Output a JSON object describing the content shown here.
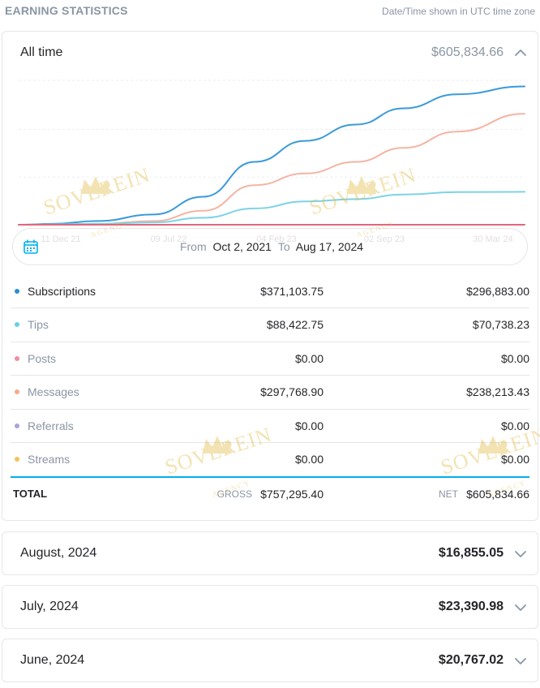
{
  "header": {
    "title": "EARNING STATISTICS",
    "timezone_note": "Date/Time shown in UTC time zone"
  },
  "summary": {
    "label": "All time",
    "amount": "$605,834.66",
    "expanded": true
  },
  "chart_data": {
    "type": "line",
    "x_ticks": [
      "11 Dec 21",
      "09 Jul 22",
      "04 Feb 23",
      "02 Sep 23",
      "30 Mar 24"
    ],
    "x": [
      "2021-10-02",
      "2021-12-11",
      "2022-03-15",
      "2022-07-09",
      "2022-10-20",
      "2023-02-04",
      "2023-05-20",
      "2023-09-02",
      "2023-12-10",
      "2024-03-30",
      "2024-08-17"
    ],
    "series": [
      {
        "name": "Subscriptions",
        "color": "#3a9ad9",
        "values": [
          0,
          2000,
          8000,
          22000,
          60000,
          135000,
          180000,
          215000,
          250000,
          280000,
          296883
        ]
      },
      {
        "name": "Messages",
        "color": "#f5b4a3",
        "values": [
          0,
          500,
          2000,
          8000,
          30000,
          85000,
          110000,
          135000,
          165000,
          200000,
          238213
        ]
      },
      {
        "name": "Tips",
        "color": "#7dd3e6",
        "values": [
          0,
          500,
          2000,
          5000,
          15000,
          35000,
          50000,
          55000,
          65000,
          70000,
          70738
        ]
      },
      {
        "name": "Posts",
        "color": "#e0687d",
        "values": [
          0,
          0,
          0,
          0,
          0,
          0,
          0,
          0,
          0,
          0,
          0
        ]
      }
    ],
    "ylim": [
      0,
      310000
    ],
    "grid": true,
    "legend": "none"
  },
  "date_range": {
    "from_label": "From",
    "from_value": "Oct 2, 2021",
    "to_label": "To",
    "to_value": "Aug 17, 2024",
    "icon": "calendar-icon"
  },
  "breakdown": [
    {
      "name": "Subscriptions",
      "color": "#2a8ed6",
      "gross": "$371,103.75",
      "net": "$296,883.00",
      "active": true
    },
    {
      "name": "Tips",
      "color": "#67d2e6",
      "gross": "$88,422.75",
      "net": "$70,738.23",
      "active": false
    },
    {
      "name": "Posts",
      "color": "#f08fa0",
      "gross": "$0.00",
      "net": "$0.00",
      "active": false
    },
    {
      "name": "Messages",
      "color": "#f7a98f",
      "gross": "$297,768.90",
      "net": "$238,213.43",
      "active": false
    },
    {
      "name": "Referrals",
      "color": "#a9a3d8",
      "gross": "$0.00",
      "net": "$0.00",
      "active": false
    },
    {
      "name": "Streams",
      "color": "#f3c25c",
      "gross": "$0.00",
      "net": "$0.00",
      "active": false
    }
  ],
  "total": {
    "label": "TOTAL",
    "gross_label": "GROSS",
    "gross": "$757,295.40",
    "net_label": "NET",
    "net": "$605,834.66"
  },
  "months": [
    {
      "label": "August, 2024",
      "amount": "$16,855.05"
    },
    {
      "label": "July, 2024",
      "amount": "$23,390.98"
    },
    {
      "label": "June, 2024",
      "amount": "$20,767.02"
    }
  ],
  "watermark": {
    "text": "SOVEREIN",
    "sub": "AGENCY",
    "color": "#e0b73a"
  }
}
